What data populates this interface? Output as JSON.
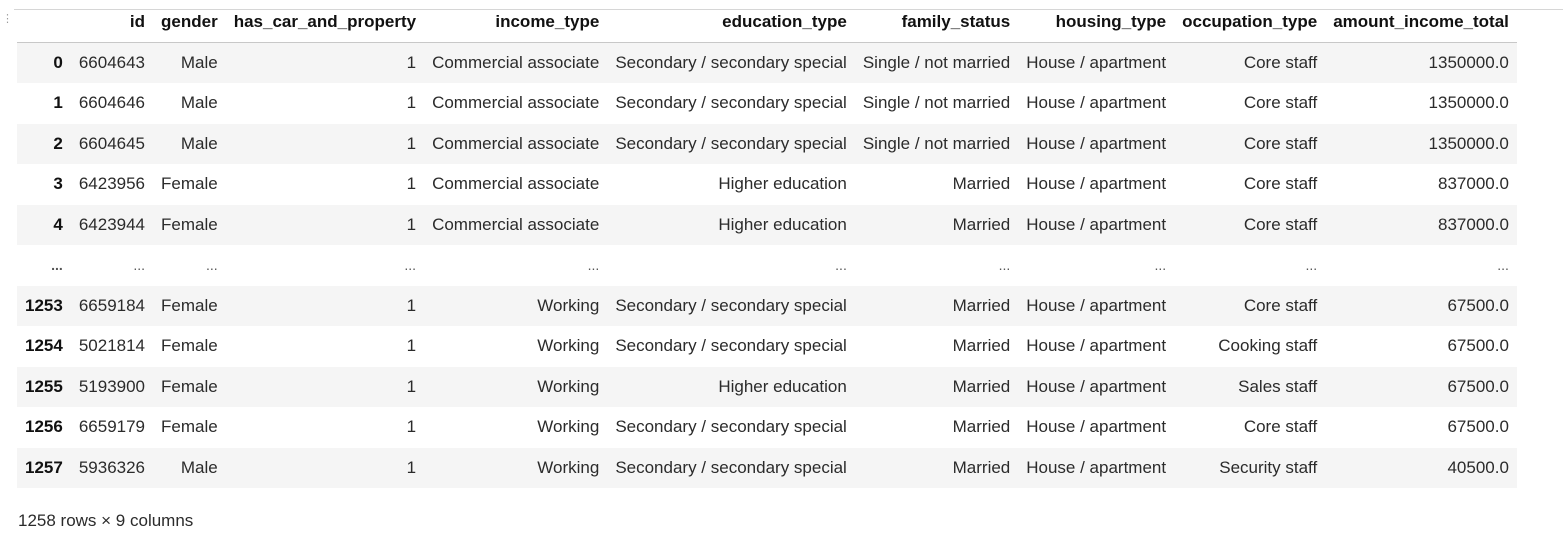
{
  "dataframe": {
    "columns": [
      "id",
      "gender",
      "has_car_and_property",
      "income_type",
      "education_type",
      "family_status",
      "housing_type",
      "occupation_type",
      "amount_income_total"
    ],
    "rows": [
      {
        "index": "0",
        "cells": [
          "6604643",
          "Male",
          "1",
          "Commercial associate",
          "Secondary / secondary special",
          "Single / not married",
          "House / apartment",
          "Core staff",
          "1350000.0"
        ]
      },
      {
        "index": "1",
        "cells": [
          "6604646",
          "Male",
          "1",
          "Commercial associate",
          "Secondary / secondary special",
          "Single / not married",
          "House / apartment",
          "Core staff",
          "1350000.0"
        ]
      },
      {
        "index": "2",
        "cells": [
          "6604645",
          "Male",
          "1",
          "Commercial associate",
          "Secondary / secondary special",
          "Single / not married",
          "House / apartment",
          "Core staff",
          "1350000.0"
        ]
      },
      {
        "index": "3",
        "cells": [
          "6423956",
          "Female",
          "1",
          "Commercial associate",
          "Higher education",
          "Married",
          "House / apartment",
          "Core staff",
          "837000.0"
        ]
      },
      {
        "index": "4",
        "cells": [
          "6423944",
          "Female",
          "1",
          "Commercial associate",
          "Higher education",
          "Married",
          "House / apartment",
          "Core staff",
          "837000.0"
        ]
      },
      {
        "index": "...",
        "ellipsis": true,
        "cells": [
          "...",
          "...",
          "...",
          "...",
          "...",
          "...",
          "...",
          "...",
          "..."
        ]
      },
      {
        "index": "1253",
        "cells": [
          "6659184",
          "Female",
          "1",
          "Working",
          "Secondary / secondary special",
          "Married",
          "House / apartment",
          "Core staff",
          "67500.0"
        ]
      },
      {
        "index": "1254",
        "cells": [
          "5021814",
          "Female",
          "1",
          "Working",
          "Secondary / secondary special",
          "Married",
          "House / apartment",
          "Cooking staff",
          "67500.0"
        ]
      },
      {
        "index": "1255",
        "cells": [
          "5193900",
          "Female",
          "1",
          "Working",
          "Higher education",
          "Married",
          "House / apartment",
          "Sales staff",
          "67500.0"
        ]
      },
      {
        "index": "1256",
        "cells": [
          "6659179",
          "Female",
          "1",
          "Working",
          "Secondary / secondary special",
          "Married",
          "House / apartment",
          "Core staff",
          "67500.0"
        ]
      },
      {
        "index": "1257",
        "cells": [
          "5936326",
          "Male",
          "1",
          "Working",
          "Secondary / secondary special",
          "Married",
          "House / apartment",
          "Security staff",
          "40500.0"
        ]
      }
    ],
    "shape_caption": "1258 rows × 9 columns"
  },
  "cell_handle_icon": "drag-handle-dots",
  "colors": {
    "stripe": "#f5f5f5",
    "header_border": "#c8c8c8"
  }
}
